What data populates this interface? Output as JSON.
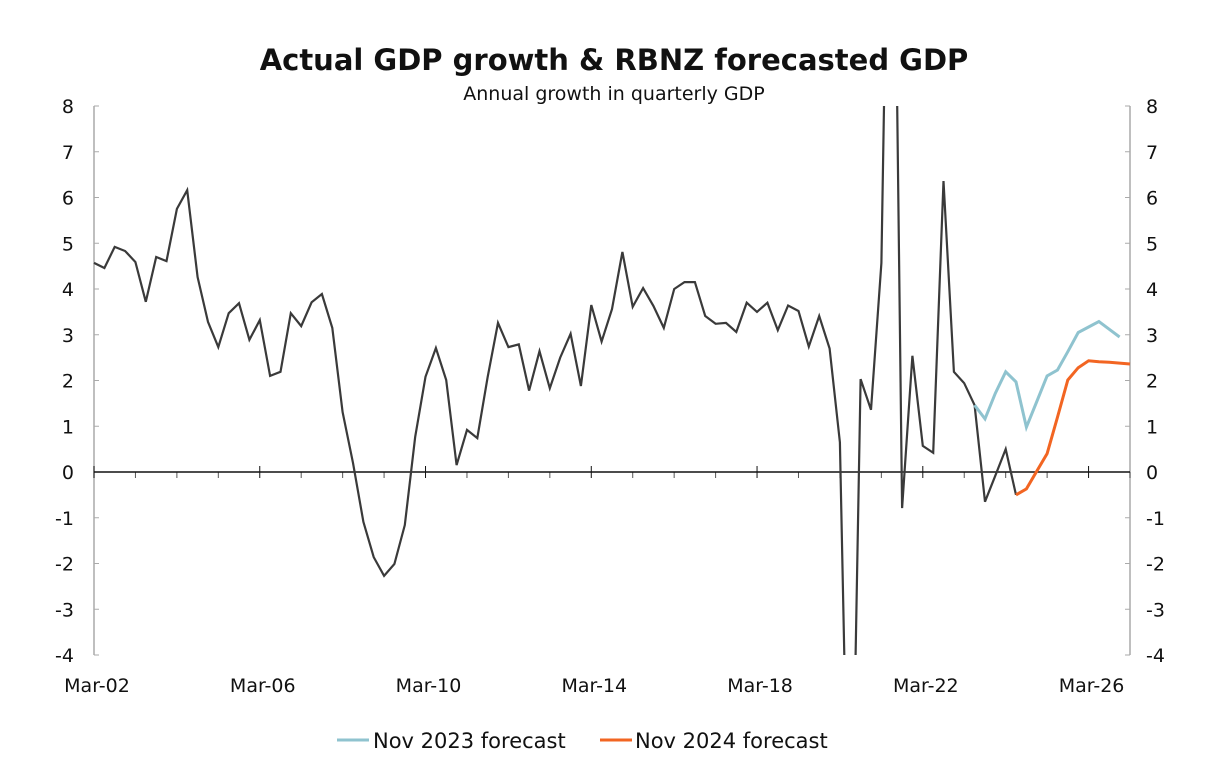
{
  "chart_data": {
    "type": "line",
    "title": "Actual GDP growth & RBNZ forecasted GDP",
    "subtitle": "Annual growth in quarterly GDP",
    "xlabel": "",
    "ylabel": "",
    "ylim": [
      -4,
      8
    ],
    "yticks": [
      8,
      7,
      6,
      5,
      4,
      3,
      2,
      1,
      0,
      -1,
      -2,
      -3,
      -4
    ],
    "y_axes": "left and right, same scale",
    "x_start": "Mar-02",
    "x_end": "Mar-27",
    "x_frequency": "quarterly",
    "xtick_labels": [
      "Mar-02",
      "Mar-06",
      "Mar-10",
      "Mar-14",
      "Mar-18",
      "Mar-22",
      "Mar-26"
    ],
    "grid": false,
    "legend_position": "bottom",
    "series": [
      {
        "color": "#3a3a3a",
        "start": "Mar-02",
        "values": [
          4.57,
          4.46,
          4.92,
          4.83,
          4.59,
          3.72,
          4.7,
          4.61,
          5.75,
          6.16,
          4.26,
          3.28,
          2.73,
          3.47,
          3.69,
          2.89,
          3.32,
          2.1,
          2.19,
          3.47,
          3.19,
          3.71,
          3.89,
          3.15,
          1.31,
          0.2,
          -1.09,
          -1.86,
          -2.27,
          -2.01,
          -1.16,
          0.77,
          2.08,
          2.71,
          2.01,
          0.15,
          0.92,
          0.74,
          2.08,
          3.26,
          2.73,
          2.79,
          1.78,
          2.64,
          1.83,
          2.5,
          3.02,
          1.88,
          3.65,
          2.85,
          3.56,
          4.81,
          3.61,
          4.02,
          3.63,
          3.15,
          4.0,
          4.15,
          4.15,
          3.41,
          3.24,
          3.26,
          3.06,
          3.7,
          3.5,
          3.7,
          3.1,
          3.64,
          3.52,
          2.74,
          3.41,
          2.7,
          0.65,
          -10.3,
          2.03,
          1.36,
          4.57,
          17.9,
          -0.79,
          2.54,
          0.57,
          0.42,
          6.36,
          2.19,
          1.94,
          1.46,
          -0.65,
          -0.08,
          0.5,
          -0.5
        ]
      },
      {
        "name": "Nov 2023 forecast",
        "color": "#8fc3cf",
        "start": "Jun-23",
        "values": [
          1.46,
          1.16,
          1.72,
          2.19,
          1.97,
          0.98,
          1.54,
          2.1,
          2.23,
          2.63,
          3.05,
          3.17,
          3.29,
          3.12,
          2.95
        ]
      },
      {
        "name": "Nov 2024 forecast",
        "color": "#f26522",
        "start": "Jun-24",
        "values": [
          -0.5,
          -0.37,
          0.02,
          0.4,
          1.2,
          2.01,
          2.28,
          2.43,
          2.41,
          2.4,
          2.38,
          2.36
        ]
      }
    ]
  }
}
